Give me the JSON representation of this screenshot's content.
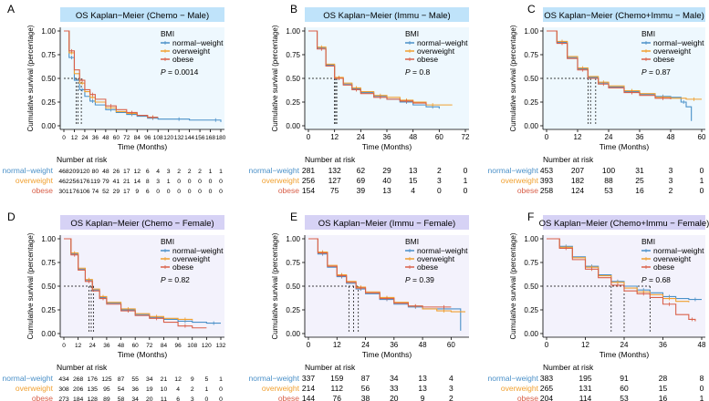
{
  "colors": {
    "normal": "#4a90c8",
    "overweight": "#f0a030",
    "obese": "#d9604a",
    "male_header": "#bfe3fa",
    "female_header": "#d6d2f5",
    "male_bg": "#eef8fe",
    "female_bg": "#f3f2fc",
    "risk_normal": "#4a90c8",
    "risk_overweight": "#f0a030",
    "risk_obese": "#d9604a"
  },
  "legend_title": "BMI",
  "series_names": [
    "normal−weight",
    "overweight",
    "obese"
  ],
  "risk_title": "Number at risk",
  "ylabel": "Cumulative survival (percentage)",
  "xlabel": "Time (Months)",
  "p_prefix": "P",
  "chart_data": [
    {
      "letter": "A",
      "type": "line",
      "sex": "male",
      "title": "OS Kaplan−Meier (Chemo − Male)",
      "p_value": "= 0.0014",
      "xlim": [
        0,
        180
      ],
      "ylim": [
        0,
        1
      ],
      "x_ticks": [
        0,
        12,
        24,
        36,
        48,
        60,
        72,
        84,
        96,
        108,
        120,
        132,
        144,
        156,
        168,
        180
      ],
      "y_ticks": [
        "0.00",
        "0.25",
        "0.50",
        "0.75",
        "1.00"
      ],
      "medians": [
        14,
        16,
        20
      ],
      "series": [
        {
          "name": "normal−weight",
          "x": [
            0,
            6,
            12,
            18,
            24,
            30,
            36,
            48,
            60,
            72,
            84,
            96,
            108,
            120,
            144,
            168,
            180
          ],
          "y": [
            1,
            0.72,
            0.48,
            0.38,
            0.31,
            0.26,
            0.22,
            0.17,
            0.14,
            0.12,
            0.1,
            0.08,
            0.07,
            0.07,
            0.06,
            0.06,
            0.04
          ]
        },
        {
          "name": "overweight",
          "x": [
            0,
            6,
            12,
            18,
            24,
            30,
            36,
            48,
            60,
            72,
            84,
            96,
            108
          ],
          "y": [
            1,
            0.77,
            0.55,
            0.45,
            0.36,
            0.3,
            0.25,
            0.19,
            0.15,
            0.13,
            0.11,
            0.09,
            0.09
          ]
        },
        {
          "name": "obese",
          "x": [
            0,
            6,
            12,
            18,
            24,
            30,
            36,
            48,
            60,
            72,
            84,
            96,
            108
          ],
          "y": [
            1,
            0.79,
            0.59,
            0.48,
            0.38,
            0.33,
            0.28,
            0.21,
            0.17,
            0.14,
            0.11,
            0.09,
            0.09
          ]
        }
      ],
      "risk": [
        [
          "468",
          "209",
          "120",
          "80",
          "48",
          "26",
          "17",
          "12",
          "6",
          "4",
          "3",
          "2",
          "2",
          "2",
          "1",
          "1"
        ],
        [
          "462",
          "256",
          "176",
          "119",
          "79",
          "41",
          "21",
          "14",
          "8",
          "3",
          "1",
          "0",
          "0",
          "0",
          "0",
          "0"
        ],
        [
          "301",
          "176",
          "106",
          "74",
          "52",
          "29",
          "17",
          "9",
          "6",
          "0",
          "0",
          "0",
          "0",
          "0",
          "0",
          "0"
        ]
      ]
    },
    {
      "letter": "B",
      "type": "line",
      "sex": "male",
      "title": "OS Kaplan−Meier (Immu − Male)",
      "p_value": "= 0.8",
      "xlim": [
        0,
        72
      ],
      "ylim": [
        0,
        1
      ],
      "x_ticks": [
        0,
        12,
        24,
        36,
        48,
        60,
        72
      ],
      "y_ticks": [
        "0.00",
        "0.25",
        "0.50",
        "0.75",
        "1.00"
      ],
      "medians": [
        12,
        12.5,
        13
      ],
      "series": [
        {
          "name": "normal−weight",
          "x": [
            0,
            4,
            8,
            12,
            16,
            20,
            24,
            30,
            36,
            42,
            48,
            54,
            60
          ],
          "y": [
            1,
            0.82,
            0.64,
            0.5,
            0.44,
            0.39,
            0.35,
            0.31,
            0.28,
            0.25,
            0.22,
            0.2,
            0.18
          ]
        },
        {
          "name": "overweight",
          "x": [
            0,
            4,
            8,
            12,
            16,
            20,
            24,
            30,
            36,
            42,
            48,
            54,
            60,
            66
          ],
          "y": [
            1,
            0.83,
            0.65,
            0.51,
            0.45,
            0.4,
            0.36,
            0.32,
            0.3,
            0.27,
            0.25,
            0.22,
            0.22,
            0.22
          ]
        },
        {
          "name": "obese",
          "x": [
            0,
            4,
            8,
            12,
            16,
            20,
            24,
            30,
            36,
            42,
            48,
            54
          ],
          "y": [
            1,
            0.81,
            0.63,
            0.5,
            0.43,
            0.38,
            0.34,
            0.3,
            0.28,
            0.26,
            0.24,
            0.22
          ]
        }
      ],
      "risk": [
        [
          "281",
          "132",
          "62",
          "29",
          "13",
          "2",
          "0"
        ],
        [
          "256",
          "127",
          "69",
          "40",
          "15",
          "3",
          "1"
        ],
        [
          "154",
          "75",
          "39",
          "13",
          "4",
          "0",
          "0"
        ]
      ]
    },
    {
      "letter": "C",
      "type": "line",
      "sex": "male",
      "title": "OS Kaplan−Meier (Chemo+Immu − Male)",
      "p_value": "= 0.87",
      "xlim": [
        0,
        60
      ],
      "ylim": [
        0,
        1
      ],
      "x_ticks": [
        0,
        12,
        24,
        36,
        48,
        60
      ],
      "y_ticks": [
        "0.00",
        "0.25",
        "0.50",
        "0.75",
        "1.00"
      ],
      "medians": [
        16,
        17,
        19
      ],
      "series": [
        {
          "name": "normal−weight",
          "x": [
            0,
            4,
            8,
            12,
            16,
            20,
            24,
            30,
            36,
            42,
            48,
            52,
            54,
            56
          ],
          "y": [
            1,
            0.88,
            0.72,
            0.6,
            0.51,
            0.45,
            0.41,
            0.36,
            0.33,
            0.31,
            0.3,
            0.25,
            0.2,
            0.05
          ]
        },
        {
          "name": "overweight",
          "x": [
            0,
            4,
            8,
            12,
            16,
            20,
            24,
            30,
            36,
            42,
            48,
            54,
            60
          ],
          "y": [
            1,
            0.89,
            0.73,
            0.61,
            0.52,
            0.46,
            0.42,
            0.37,
            0.34,
            0.3,
            0.29,
            0.28,
            0.28
          ]
        },
        {
          "name": "obese",
          "x": [
            0,
            4,
            8,
            12,
            16,
            20,
            24,
            30,
            36,
            42,
            48
          ],
          "y": [
            1,
            0.87,
            0.71,
            0.59,
            0.5,
            0.44,
            0.4,
            0.35,
            0.32,
            0.29,
            0.28
          ]
        }
      ],
      "risk": [
        [
          "453",
          "207",
          "100",
          "31",
          "3",
          "0"
        ],
        [
          "393",
          "182",
          "88",
          "25",
          "3",
          "1"
        ],
        [
          "258",
          "124",
          "53",
          "16",
          "2",
          "0"
        ]
      ]
    },
    {
      "letter": "D",
      "type": "line",
      "sex": "female",
      "title": "OS Kaplan−Meier (Chemo − Female)",
      "p_value": "= 0.82",
      "xlim": [
        0,
        132
      ],
      "ylim": [
        0,
        1
      ],
      "x_ticks": [
        0,
        12,
        24,
        36,
        48,
        60,
        72,
        84,
        96,
        108,
        120,
        132
      ],
      "y_ticks": [
        "0.00",
        "0.25",
        "0.50",
        "0.75",
        "1.00"
      ],
      "medians": [
        21,
        23,
        25
      ],
      "series": [
        {
          "name": "normal−weight",
          "x": [
            0,
            6,
            12,
            18,
            24,
            30,
            36,
            48,
            60,
            72,
            84,
            96,
            108,
            120,
            132
          ],
          "y": [
            1,
            0.84,
            0.68,
            0.56,
            0.46,
            0.38,
            0.32,
            0.25,
            0.2,
            0.17,
            0.15,
            0.13,
            0.12,
            0.11,
            0.11
          ]
        },
        {
          "name": "overweight",
          "x": [
            0,
            6,
            12,
            18,
            24,
            30,
            36,
            48,
            60,
            72,
            84,
            96,
            108
          ],
          "y": [
            1,
            0.85,
            0.69,
            0.57,
            0.47,
            0.39,
            0.33,
            0.26,
            0.21,
            0.18,
            0.16,
            0.15,
            0.14
          ]
        },
        {
          "name": "obese",
          "x": [
            0,
            6,
            12,
            18,
            24,
            30,
            36,
            48,
            60,
            72,
            84,
            96,
            108,
            120
          ],
          "y": [
            1,
            0.83,
            0.67,
            0.55,
            0.45,
            0.37,
            0.31,
            0.24,
            0.19,
            0.16,
            0.12,
            0.08,
            0.06,
            0.06
          ]
        }
      ],
      "risk": [
        [
          "434",
          "268",
          "176",
          "125",
          "87",
          "55",
          "34",
          "21",
          "12",
          "9",
          "5",
          "1"
        ],
        [
          "308",
          "206",
          "135",
          "95",
          "54",
          "36",
          "19",
          "10",
          "4",
          "2",
          "1",
          "0"
        ],
        [
          "273",
          "184",
          "128",
          "89",
          "58",
          "34",
          "20",
          "11",
          "6",
          "3",
          "0",
          "0"
        ]
      ]
    },
    {
      "letter": "E",
      "type": "line",
      "sex": "female",
      "title": "OS Kaplan−Meier (Immu − Female)",
      "p_value": "= 0.39",
      "xlim": [
        0,
        66
      ],
      "ylim": [
        0,
        1
      ],
      "x_ticks": [
        0,
        12,
        24,
        36,
        48,
        60
      ],
      "y_ticks": [
        "0.00",
        "0.25",
        "0.50",
        "0.75",
        "1.00"
      ],
      "medians": [
        17,
        19,
        21
      ],
      "series": [
        {
          "name": "normal−weight",
          "x": [
            0,
            4,
            8,
            12,
            16,
            20,
            24,
            30,
            36,
            42,
            48,
            54,
            60,
            64
          ],
          "y": [
            1,
            0.84,
            0.7,
            0.6,
            0.53,
            0.47,
            0.42,
            0.36,
            0.31,
            0.28,
            0.26,
            0.26,
            0.26,
            0.03
          ]
        },
        {
          "name": "overweight",
          "x": [
            0,
            4,
            8,
            12,
            16,
            20,
            24,
            30,
            36,
            42,
            48,
            54,
            60,
            66
          ],
          "y": [
            1,
            0.86,
            0.72,
            0.62,
            0.55,
            0.49,
            0.44,
            0.38,
            0.33,
            0.29,
            0.26,
            0.24,
            0.23,
            0.23
          ]
        },
        {
          "name": "obese",
          "x": [
            0,
            4,
            8,
            12,
            16,
            20,
            24,
            30,
            36,
            42,
            48,
            54,
            60
          ],
          "y": [
            1,
            0.85,
            0.71,
            0.61,
            0.54,
            0.48,
            0.43,
            0.37,
            0.32,
            0.29,
            0.28,
            0.28,
            0.28
          ]
        }
      ],
      "risk": [
        [
          "337",
          "159",
          "87",
          "34",
          "13",
          "4"
        ],
        [
          "214",
          "112",
          "56",
          "33",
          "13",
          "3"
        ],
        [
          "144",
          "76",
          "38",
          "20",
          "9",
          "2"
        ]
      ]
    },
    {
      "letter": "F",
      "type": "line",
      "sex": "female",
      "title": "OS Kaplan−Meier (Chemo+Immu − Female)",
      "p_value": "= 0.68",
      "xlim": [
        0,
        48
      ],
      "ylim": [
        0,
        1
      ],
      "x_ticks": [
        0,
        12,
        24,
        36,
        48
      ],
      "y_ticks": [
        "0.00",
        "0.25",
        "0.50",
        "0.75",
        "1.00"
      ],
      "medians": [
        20,
        24,
        32
      ],
      "series": [
        {
          "name": "normal−weight",
          "x": [
            0,
            4,
            8,
            12,
            16,
            20,
            24,
            28,
            32,
            36,
            40,
            44,
            48
          ],
          "y": [
            1,
            0.92,
            0.81,
            0.71,
            0.62,
            0.55,
            0.5,
            0.46,
            0.43,
            0.39,
            0.37,
            0.36,
            0.36
          ]
        },
        {
          "name": "overweight",
          "x": [
            0,
            4,
            8,
            12,
            16,
            20,
            24,
            28,
            32,
            36,
            40,
            44
          ],
          "y": [
            1,
            0.91,
            0.8,
            0.7,
            0.61,
            0.54,
            0.48,
            0.44,
            0.41,
            0.37,
            0.34,
            0.33
          ]
        },
        {
          "name": "obese",
          "x": [
            0,
            4,
            8,
            12,
            16,
            20,
            24,
            28,
            32,
            36,
            40,
            44,
            46
          ],
          "y": [
            1,
            0.9,
            0.78,
            0.68,
            0.59,
            0.51,
            0.45,
            0.42,
            0.38,
            0.31,
            0.2,
            0.15,
            0.13
          ]
        }
      ],
      "risk": [
        [
          "383",
          "195",
          "91",
          "28",
          "8"
        ],
        [
          "265",
          "131",
          "60",
          "15",
          "0"
        ],
        [
          "204",
          "114",
          "53",
          "16",
          "1"
        ]
      ]
    }
  ]
}
